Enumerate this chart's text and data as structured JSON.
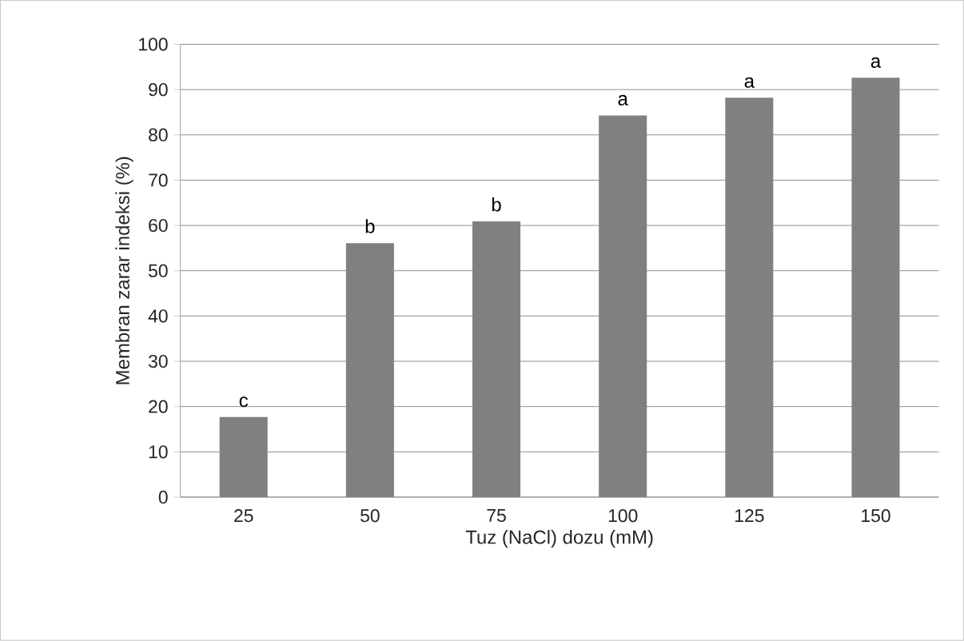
{
  "chart_data": {
    "type": "bar",
    "xlabel": "Tuz (NaCl) dozu (mM)",
    "ylabel": "Membran zarar indeksi (%)",
    "categories": [
      "25",
      "50",
      "75",
      "100",
      "125",
      "150"
    ],
    "values": [
      17.7,
      56.1,
      60.9,
      84.3,
      88.2,
      92.6
    ],
    "color": "#808080",
    "ylim": [
      0,
      100
    ],
    "yticks": [
      0,
      10,
      20,
      30,
      40,
      50,
      60,
      70,
      80,
      90,
      100
    ],
    "grid": "y",
    "annotations": [
      {
        "text": "c",
        "x": "25",
        "y": 17.7
      },
      {
        "text": "b",
        "x": "50",
        "y": 56.1
      },
      {
        "text": "b",
        "x": "75",
        "y": 60.9
      },
      {
        "text": "a",
        "x": "100",
        "y": 84.3
      },
      {
        "text": "a",
        "x": "125",
        "y": 88.2
      },
      {
        "text": "a",
        "x": "150",
        "y": 92.6
      }
    ]
  }
}
